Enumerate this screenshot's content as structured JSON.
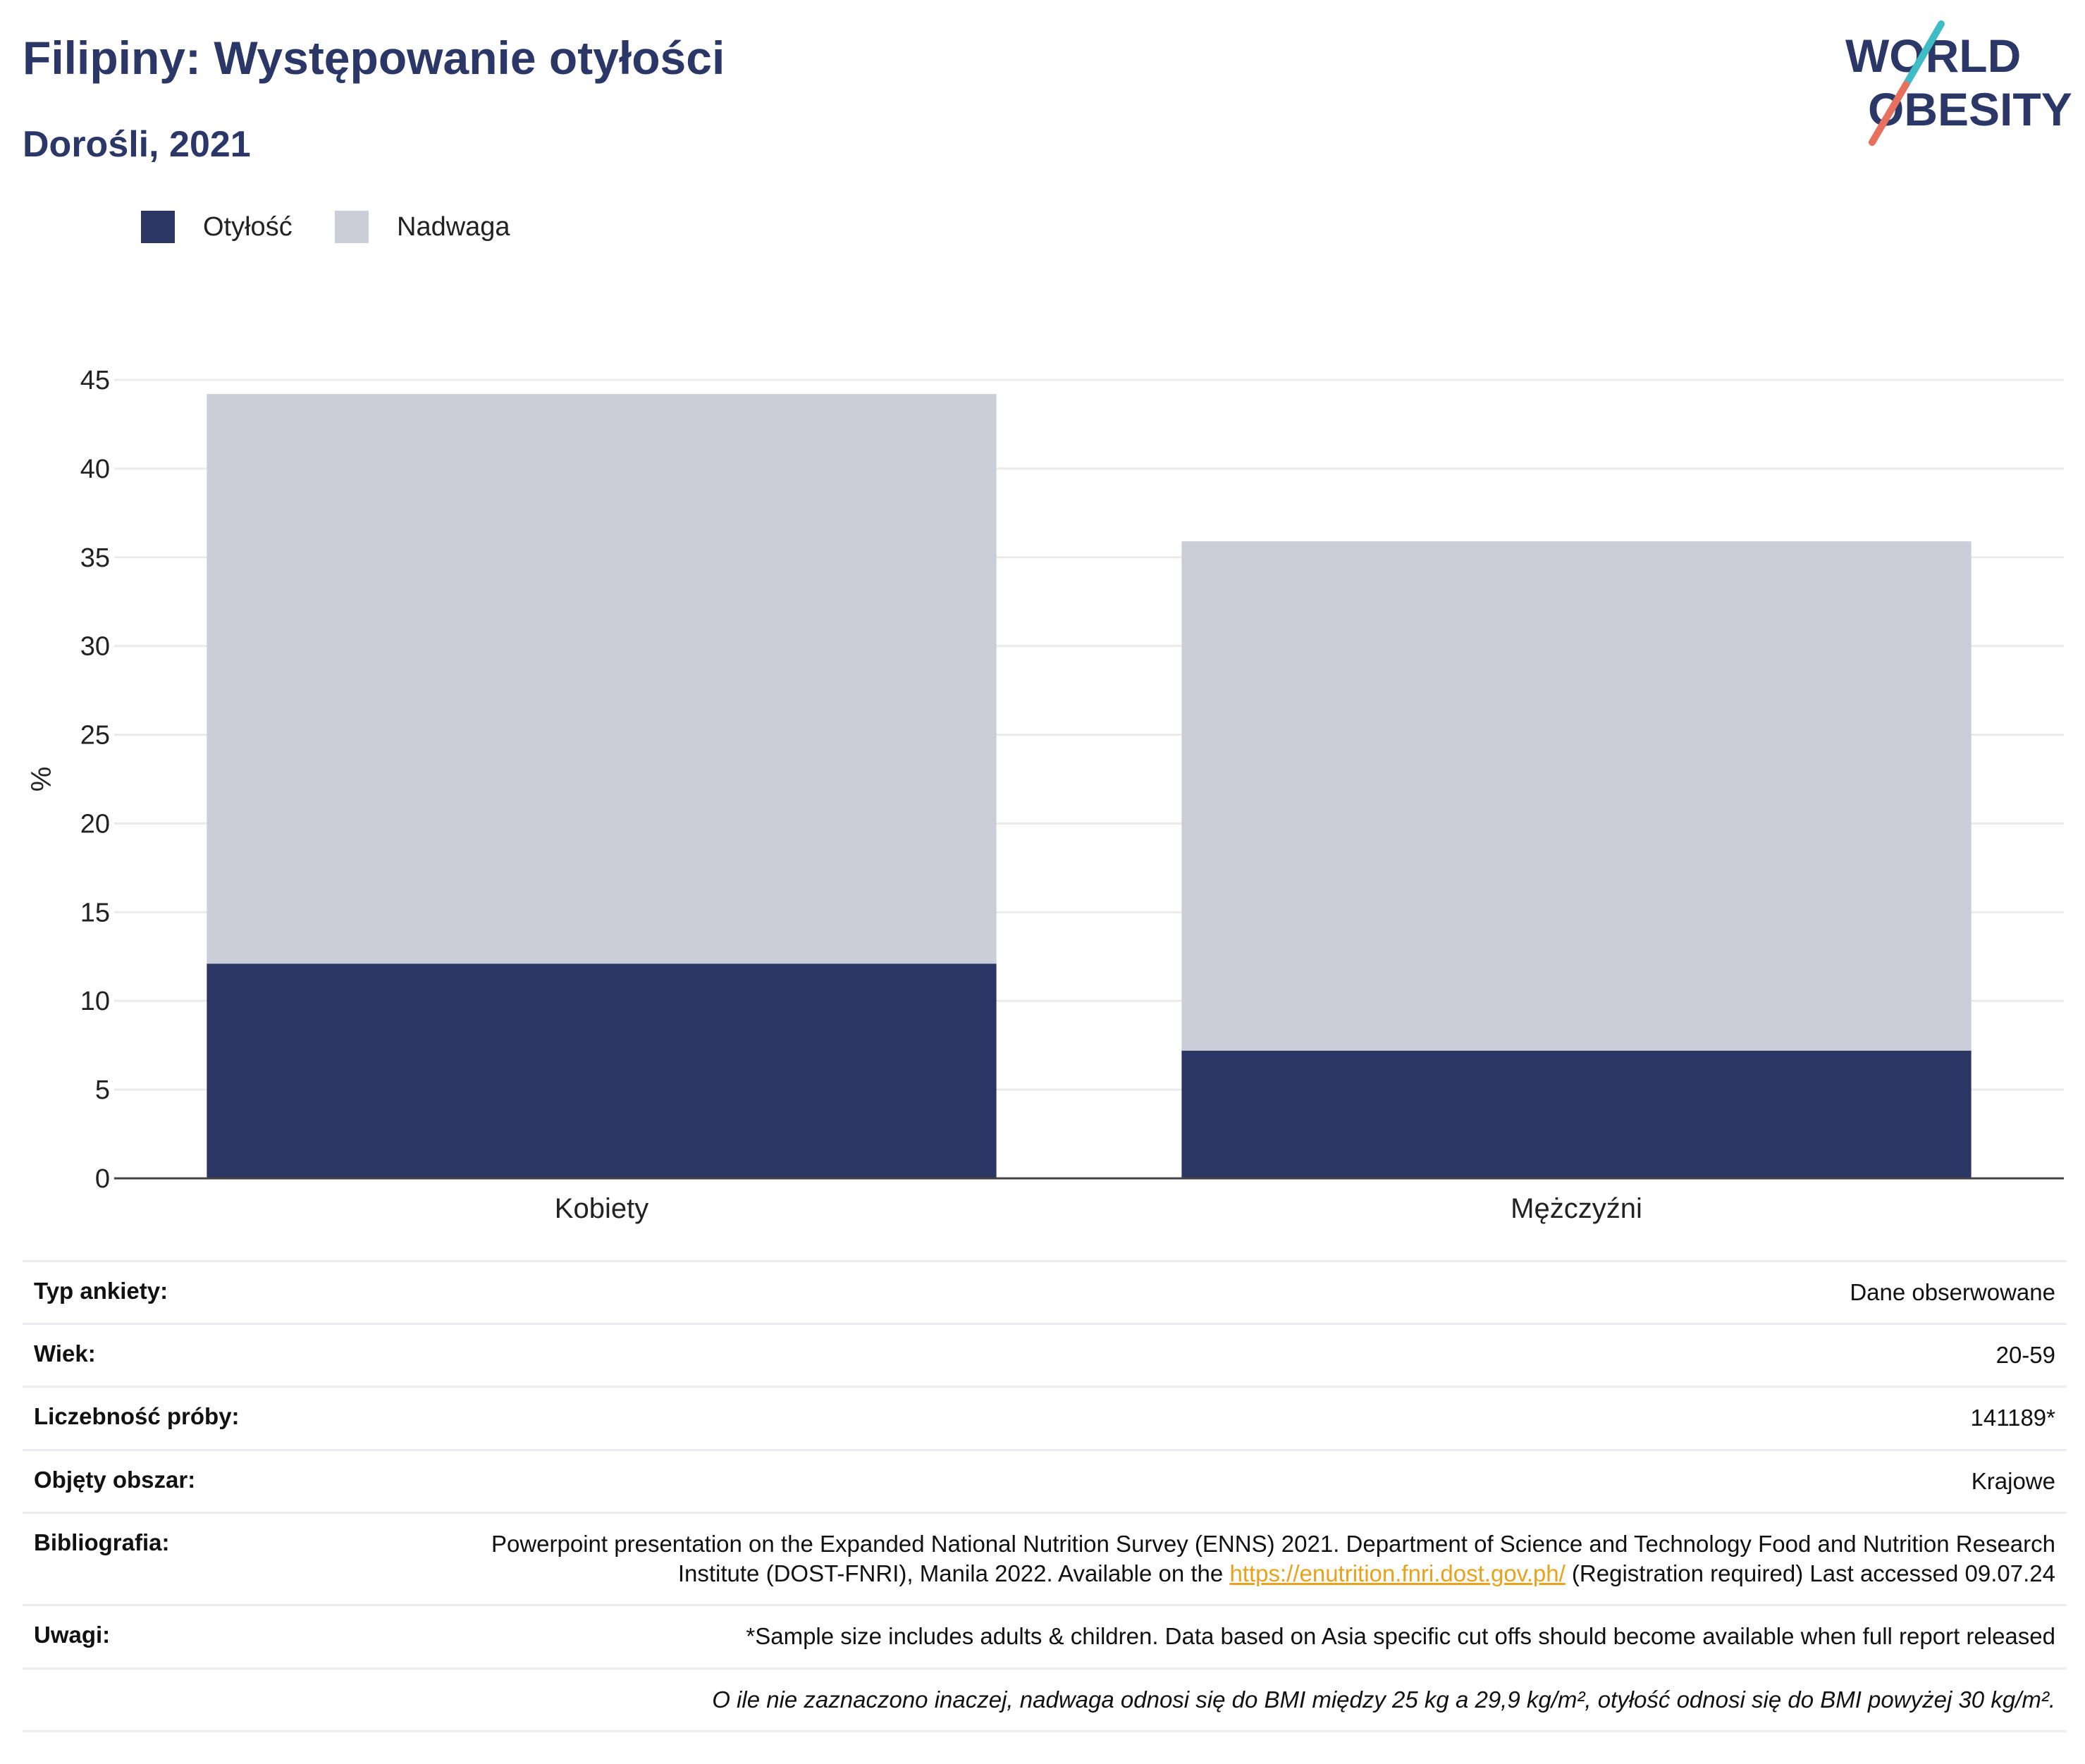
{
  "header": {
    "title": "Filipiny: Występowanie otyłości",
    "subtitle": "Dorośli, 2021",
    "logo_line1": "WORLD",
    "logo_line2": "OBESITY"
  },
  "colors": {
    "obesity": "#2b3664",
    "overweight": "#cbcdd8",
    "title": "#2b3766",
    "logo_slash_teal": "#3fbcc5",
    "logo_slash_coral": "#e8705e",
    "link": "#e9a21c",
    "grid": "#ebebeb",
    "axis": "#444444"
  },
  "legend": [
    {
      "label": "Otyłość",
      "color": "#2b3664"
    },
    {
      "label": "Nadwaga",
      "color": "#cbcdd8"
    }
  ],
  "chart_data": {
    "type": "bar",
    "stacked": true,
    "categories": [
      "Kobiety",
      "Mężczyźni"
    ],
    "series": [
      {
        "name": "Otyłość",
        "values": [
          12.1,
          7.2
        ]
      },
      {
        "name": "Nadwaga",
        "values": [
          32.1,
          28.7
        ]
      }
    ],
    "totals": [
      44.2,
      35.9
    ],
    "title": "",
    "xlabel": "",
    "ylabel": "%",
    "ylim": [
      0,
      45
    ],
    "yticks": [
      0,
      5,
      10,
      15,
      20,
      25,
      30,
      35,
      40,
      45
    ],
    "grid": true,
    "legend_position": "top-left"
  },
  "info": [
    {
      "label": "Typ ankiety:",
      "value": "Dane obserwowane"
    },
    {
      "label": "Wiek:",
      "value": "20-59"
    },
    {
      "label": "Liczebność próby:",
      "value": "141189*"
    },
    {
      "label": "Objęty obszar:",
      "value": "Krajowe"
    },
    {
      "label": "Bibliografia:",
      "value_before": "Powerpoint presentation on the Expanded National Nutrition Survey (ENNS) 2021. Department of Science and Technology Food and Nutrition Research Institute (DOST-FNRI), Manila 2022. Available on the ",
      "link": "https://enutrition.fnri.dost.gov.ph/",
      "value_after": " (Registration required) Last accessed 09.07.24"
    },
    {
      "label": "Uwagi:",
      "value": "*Sample size includes adults & children. Data based on Asia specific cut offs should become available when full report released"
    },
    {
      "label": "",
      "value": "O ile nie zaznaczono inaczej, nadwaga odnosi się do BMI między 25 kg a 29,9 kg/m², otyłość odnosi się do BMI powyżej 30 kg/m²."
    }
  ]
}
